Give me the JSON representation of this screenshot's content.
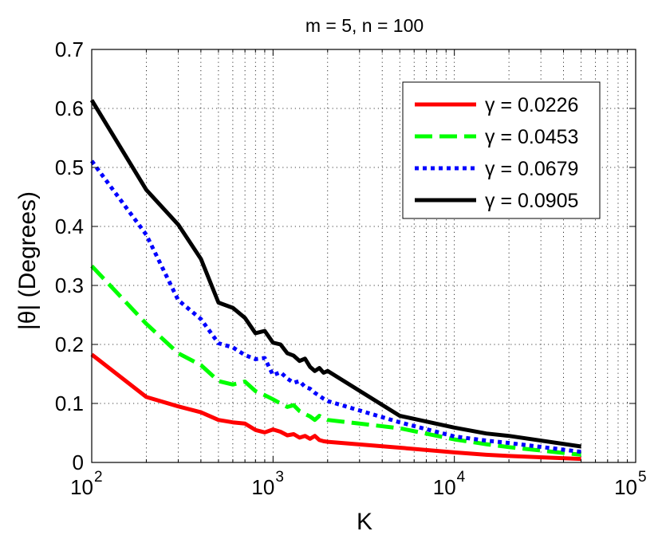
{
  "chart_data": {
    "type": "line",
    "title": "m = 5, n = 100",
    "xlabel": "K",
    "ylabel": "|θ| (Degrees)",
    "xscale": "log",
    "xlim": [
      100,
      100000
    ],
    "ylim": [
      0,
      0.7
    ],
    "grid": true,
    "legend_position": "top-right",
    "x_ticks": [
      {
        "value": 100,
        "base": "10",
        "exp": "2"
      },
      {
        "value": 1000,
        "base": "10",
        "exp": "3"
      },
      {
        "value": 10000,
        "base": "10",
        "exp": "4"
      },
      {
        "value": 100000,
        "base": "10",
        "exp": "5"
      }
    ],
    "y_ticks": [
      {
        "value": 0,
        "label": "0"
      },
      {
        "value": 0.1,
        "label": "0.1"
      },
      {
        "value": 0.2,
        "label": "0.2"
      },
      {
        "value": 0.3,
        "label": "0.3"
      },
      {
        "value": 0.4,
        "label": "0.4"
      },
      {
        "value": 0.5,
        "label": "0.5"
      },
      {
        "value": 0.6,
        "label": "0.6"
      },
      {
        "value": 0.7,
        "label": "0.7"
      }
    ],
    "series": [
      {
        "name": "γ = 0.0226",
        "color": "#ff0000",
        "style": "solid",
        "x": [
          100,
          200,
          300,
          400,
          500,
          600,
          700,
          800,
          900,
          1000,
          1100,
          1200,
          1300,
          1400,
          1500,
          1600,
          1700,
          1800,
          1900,
          2000,
          5000,
          10000,
          15000,
          20000,
          50000
        ],
        "y": [
          0.183,
          0.111,
          0.095,
          0.085,
          0.072,
          0.068,
          0.066,
          0.055,
          0.051,
          0.056,
          0.052,
          0.046,
          0.048,
          0.042,
          0.045,
          0.04,
          0.045,
          0.038,
          0.036,
          0.035,
          0.025,
          0.017,
          0.013,
          0.011,
          0.006
        ]
      },
      {
        "name": "γ = 0.0453",
        "color": "#00ff00",
        "style": "dashed",
        "x": [
          100,
          200,
          300,
          400,
          500,
          600,
          700,
          800,
          900,
          1000,
          1100,
          1200,
          1300,
          1400,
          1500,
          1600,
          1700,
          1800,
          1900,
          2000,
          5000,
          10000,
          15000,
          20000,
          50000
        ],
        "y": [
          0.333,
          0.235,
          0.185,
          0.165,
          0.138,
          0.132,
          0.137,
          0.121,
          0.114,
          0.107,
          0.1,
          0.094,
          0.097,
          0.087,
          0.082,
          0.078,
          0.072,
          0.079,
          0.075,
          0.072,
          0.058,
          0.039,
          0.031,
          0.026,
          0.013
        ]
      },
      {
        "name": "γ = 0.0679",
        "color": "#0000ff",
        "style": "dotted",
        "x": [
          100,
          200,
          300,
          400,
          500,
          600,
          700,
          800,
          900,
          1000,
          1100,
          1200,
          1300,
          1400,
          1500,
          1600,
          1700,
          1800,
          1900,
          2000,
          5000,
          10000,
          15000,
          20000,
          50000
        ],
        "y": [
          0.511,
          0.386,
          0.275,
          0.243,
          0.202,
          0.195,
          0.182,
          0.175,
          0.177,
          0.148,
          0.153,
          0.142,
          0.135,
          0.138,
          0.128,
          0.125,
          0.118,
          0.113,
          0.108,
          0.104,
          0.068,
          0.044,
          0.037,
          0.033,
          0.018
        ]
      },
      {
        "name": "γ = 0.0905",
        "color": "#000000",
        "style": "solid",
        "x": [
          100,
          200,
          300,
          400,
          500,
          600,
          700,
          800,
          900,
          1000,
          1100,
          1200,
          1300,
          1400,
          1500,
          1600,
          1700,
          1800,
          1900,
          2000,
          5000,
          10000,
          15000,
          20000,
          50000
        ],
        "y": [
          0.614,
          0.462,
          0.403,
          0.345,
          0.271,
          0.262,
          0.245,
          0.219,
          0.223,
          0.203,
          0.2,
          0.185,
          0.181,
          0.172,
          0.176,
          0.162,
          0.155,
          0.16,
          0.152,
          0.155,
          0.079,
          0.059,
          0.049,
          0.045,
          0.027
        ]
      }
    ]
  }
}
